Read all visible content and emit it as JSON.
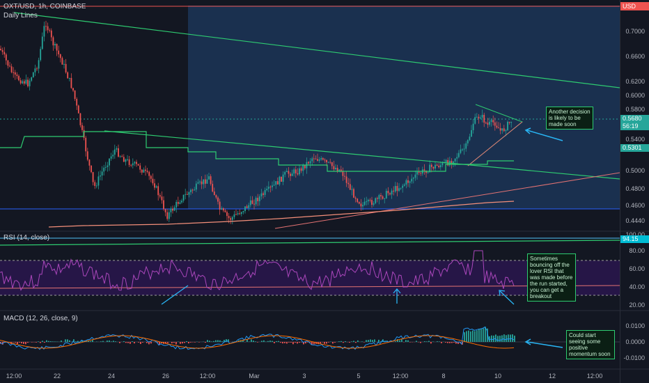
{
  "header": {
    "symbol_line": "OXT/USD, 1h, COINBASE",
    "study_label": "Daily Lines",
    "currency": "USD"
  },
  "rsi_pane": {
    "title": "RSI (14, close)",
    "value_tag": "94.15"
  },
  "macd_pane": {
    "title": "MACD (12, 26, close, 9)"
  },
  "price_axis": {
    "ticks": [
      "0.7000",
      "0.6600",
      "0.6200",
      "0.6000",
      "0.5800",
      "0.5400",
      "0.5000",
      "0.4800",
      "0.4600",
      "0.4440"
    ],
    "last_price_tag": "0.5680",
    "countdown_tag": "56:19",
    "support_tag": "0.5301",
    "top_tag": "100.00"
  },
  "rsi_axis": {
    "ticks": [
      "80.00",
      "60.00",
      "40.00",
      "20.00"
    ]
  },
  "macd_axis": {
    "ticks": [
      "0.0100",
      "0.0000",
      "-0.0100"
    ]
  },
  "time_axis": {
    "ticks": [
      "12:00",
      "22",
      "24",
      "26",
      "12:00",
      "Mar",
      "3",
      "5",
      "12:00",
      "8",
      "10",
      "12",
      "12:00"
    ]
  },
  "annotations": {
    "price_note": "Another decision is likely to be made soon",
    "rsi_note": "Sometimes bouncing off the lover RSI that was made before the run started, you can get a breakout",
    "macd_note": "Could start seeing some positive momentum soon"
  },
  "colors": {
    "background": "#131722",
    "highlight_zone": "#1e3a5f",
    "up": "#26a69a",
    "down": "#ef5350",
    "trendline": "#2ecc71",
    "rsi": "#9c27b0",
    "macd": "#2196f3",
    "signal": "#ff6d00",
    "arrow": "#29b6f6"
  }
}
